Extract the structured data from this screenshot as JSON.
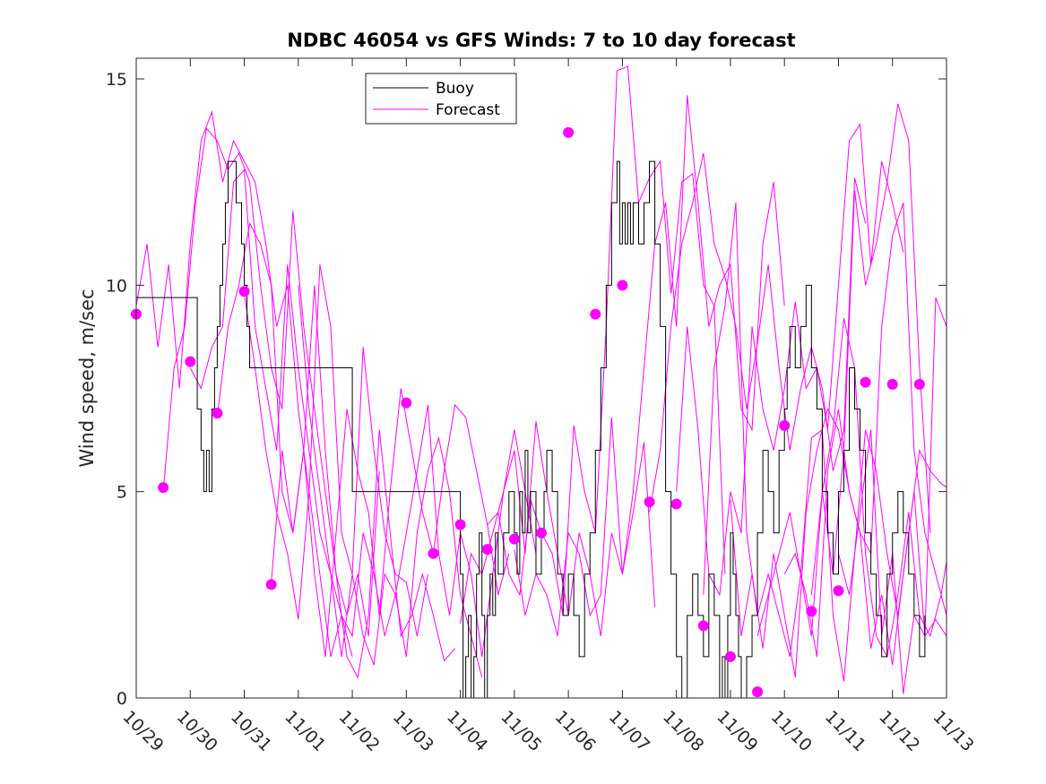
{
  "chart_data": {
    "type": "line",
    "title": "NDBC 46054 vs GFS Winds: 7 to 10 day forecast",
    "xlabel": "",
    "ylabel": "Wind speed, m/sec",
    "xlim": [
      0,
      15
    ],
    "ylim": [
      0,
      15.5
    ],
    "x_ticks": [
      "10/29",
      "10/30",
      "10/31",
      "11/01",
      "11/02",
      "11/03",
      "11/04",
      "11/05",
      "11/06",
      "11/07",
      "11/08",
      "11/09",
      "11/10",
      "11/11",
      "11/12",
      "11/13"
    ],
    "y_ticks": [
      0,
      5,
      10,
      15
    ],
    "legend": {
      "placement": "top-center",
      "entries": [
        "Buoy",
        "Forecast"
      ]
    },
    "colors": {
      "buoy": "#000000",
      "forecast": "#ff00ff"
    },
    "series": [
      {
        "name": "Buoy",
        "style": "step",
        "x": [
          0,
          1.13,
          1.2,
          1.25,
          1.3,
          1.35,
          1.4,
          1.45,
          1.5,
          1.55,
          1.6,
          1.65,
          1.7,
          1.8,
          1.85,
          1.9,
          1.95,
          2.0,
          2.05,
          2.1,
          4.0,
          6.0,
          6.05,
          6.1,
          6.15,
          6.2,
          6.25,
          6.3,
          6.35,
          6.4,
          6.45,
          6.5,
          6.55,
          6.6,
          6.65,
          6.7,
          6.8,
          6.9,
          7.0,
          7.05,
          7.1,
          7.15,
          7.2,
          7.25,
          7.3,
          7.4,
          7.5,
          7.55,
          7.6,
          7.7,
          7.8,
          7.9,
          8.0,
          8.1,
          8.2,
          8.3,
          8.4,
          8.5,
          8.6,
          8.7,
          8.8,
          8.9,
          8.95,
          9.0,
          9.05,
          9.1,
          9.15,
          9.2,
          9.3,
          9.4,
          9.5,
          9.6,
          9.7,
          9.8,
          9.9,
          10.0,
          10.1,
          10.2,
          10.3,
          10.4,
          10.5,
          10.6,
          10.7,
          10.8,
          10.85,
          10.9,
          10.95,
          11.0,
          11.05,
          11.1,
          11.15,
          11.2,
          11.3,
          11.4,
          11.5,
          11.6,
          11.7,
          11.8,
          11.9,
          12.0,
          12.05,
          12.1,
          12.2,
          12.3,
          12.4,
          12.5,
          12.6,
          12.7,
          12.8,
          12.9,
          13.0,
          13.1,
          13.2,
          13.3,
          13.4,
          13.5,
          13.6,
          13.7,
          13.8,
          13.9,
          14.0,
          14.1,
          14.2,
          14.3,
          14.4,
          14.5,
          14.6
        ],
        "values": [
          9.7,
          7,
          6,
          5,
          6,
          5,
          7,
          8,
          9,
          10,
          11,
          12,
          13,
          13,
          12,
          12,
          11,
          10,
          9,
          8,
          5,
          3,
          0,
          1,
          2,
          0,
          1,
          3,
          4,
          2,
          0,
          2,
          3,
          2,
          4,
          3,
          4,
          5,
          4,
          3,
          5,
          4,
          6,
          4,
          5,
          3,
          4,
          5,
          6,
          5,
          3,
          2,
          3,
          2,
          1,
          3,
          4,
          6,
          8,
          10,
          12,
          13,
          11,
          12,
          11,
          12,
          11,
          12,
          11,
          12,
          13,
          11,
          9,
          5,
          3,
          1,
          0,
          2,
          3,
          2,
          1,
          3,
          2,
          0,
          1,
          0,
          2,
          4,
          3,
          2,
          1,
          0,
          1,
          2,
          4,
          6,
          5,
          4,
          6,
          7,
          8,
          9,
          8,
          9,
          10,
          8,
          7,
          5,
          4,
          3,
          5,
          6,
          8,
          7,
          6,
          4,
          3,
          2,
          1,
          3,
          4,
          5,
          4,
          3,
          2,
          1,
          2
        ]
      },
      {
        "name": "Forecast",
        "x": [
          0,
          0.2,
          0.4,
          0.6,
          0.8,
          1.0,
          1.2,
          1.4,
          1.6,
          1.8,
          2.0,
          2.2,
          2.4,
          2.6,
          2.8,
          3.0,
          3.2,
          3.4,
          3.6,
          3.8,
          4.0
        ],
        "values": [
          9.5,
          11,
          8.5,
          10.5,
          7.5,
          11,
          13.5,
          14.2,
          12.5,
          13.5,
          13,
          12.5,
          11,
          9,
          10,
          7,
          5,
          3,
          1,
          2,
          1
        ]
      },
      {
        "name": "Forecast",
        "x": [
          0.5,
          0.7,
          0.9,
          1.1,
          1.3,
          1.5,
          1.7,
          1.9,
          2.1,
          2.3,
          2.5,
          2.7,
          2.9,
          3.1,
          3.3,
          3.5,
          3.7,
          3.9,
          4.1,
          4.3,
          4.5
        ],
        "values": [
          5,
          8,
          9,
          12,
          13.8,
          13.5,
          12.8,
          13.2,
          12.5,
          10,
          8,
          7,
          11.8,
          9,
          7,
          5,
          3,
          2,
          3,
          1.5,
          5.5
        ]
      },
      {
        "name": "Forecast",
        "x": [
          1.0,
          1.2,
          1.4,
          1.6,
          1.8,
          2.0,
          2.2,
          2.4,
          2.6,
          2.8,
          3.0,
          3.2,
          3.4,
          3.6,
          3.8,
          4.0,
          4.2,
          4.4,
          4.6,
          4.8,
          5.0,
          5.2,
          5.4
        ],
        "values": [
          8,
          7.5,
          8.5,
          9,
          12.5,
          12.8,
          9,
          7.5,
          6,
          10.5,
          8,
          6,
          4,
          3,
          1,
          3,
          8.5,
          6,
          4,
          3,
          2.8,
          1.5,
          3
        ]
      },
      {
        "name": "Forecast",
        "x": [
          1.5,
          1.7,
          1.9,
          2.1,
          2.3,
          2.5,
          2.7,
          2.9,
          3.1,
          3.3,
          3.5,
          3.7,
          3.9,
          4.1,
          4.3,
          4.5,
          4.7,
          4.9,
          5.1,
          5.3,
          5.5,
          5.7,
          5.9
        ],
        "values": [
          6.8,
          9,
          10,
          11.5,
          11,
          10,
          5,
          4,
          6,
          10,
          6,
          3,
          1,
          0.5,
          2,
          6.5,
          4,
          1.5,
          2,
          3,
          2,
          0.9,
          1.2
        ]
      },
      {
        "name": "Forecast",
        "x": [
          2.0,
          2.2,
          2.4,
          2.6,
          2.8,
          3.0,
          3.2,
          3.4,
          3.6,
          3.8,
          4.0,
          4.2,
          4.4,
          4.6,
          4.8,
          5.0,
          5.2,
          5.4,
          5.6,
          5.8,
          6.0,
          6.2,
          6.4
        ],
        "values": [
          9.8,
          8,
          6,
          4.5,
          3.5,
          1.9,
          5,
          10.5,
          9,
          4,
          3,
          1.5,
          0.8,
          3,
          2.5,
          1,
          4,
          5.5,
          6.3,
          5,
          2.5,
          1.5,
          0.5
        ]
      },
      {
        "name": "Forecast",
        "x": [
          2.5,
          2.7,
          2.9,
          3.1,
          3.3,
          3.5,
          3.7,
          3.9,
          4.1,
          4.3,
          4.5,
          4.7,
          4.9,
          5.1,
          5.3,
          5.5,
          5.7,
          5.9,
          6.1,
          6.3,
          6.5,
          6.7,
          6.9
        ],
        "values": [
          2.8,
          6,
          4,
          6,
          3,
          1,
          4,
          7,
          5.5,
          4.5,
          2,
          5,
          7.5,
          6,
          4.5,
          3.5,
          5.5,
          7.1,
          6.8,
          5.5,
          4.2,
          2.5,
          3.5
        ]
      },
      {
        "name": "Forecast",
        "x": [
          3.0,
          3.2,
          3.4,
          3.6,
          3.8,
          4.0,
          4.2,
          4.4,
          4.6,
          4.8,
          5.0,
          5.2,
          5.4,
          5.6,
          5.8,
          6.0,
          6.2,
          6.4,
          6.6,
          6.8,
          7.0,
          7.2,
          7.4
        ],
        "values": [
          10,
          7,
          5,
          3,
          2,
          1.5,
          4,
          3,
          1.5,
          2.5,
          4,
          5.5,
          7.1,
          3.5,
          2,
          4,
          3,
          1,
          3,
          5,
          6.5,
          5,
          3.5
        ]
      },
      {
        "name": "Forecast",
        "x": [
          6.0,
          6.2,
          6.4,
          6.6,
          6.8,
          7.0,
          7.2,
          7.4,
          7.6,
          7.8,
          8.0,
          8.2,
          8.4,
          8.6,
          8.8,
          9.0,
          9.2,
          9.4,
          9.6
        ],
        "values": [
          1.8,
          3.5,
          3,
          4,
          5,
          6,
          3.5,
          6.7,
          5,
          3.5,
          2,
          4,
          3,
          1.5,
          4,
          3,
          4.5,
          6.2,
          2.2
        ]
      },
      {
        "name": "Forecast",
        "x": [
          6.5,
          6.7,
          6.9,
          7.1,
          7.3,
          7.5,
          7.7,
          7.9,
          8.1,
          8.3,
          8.5,
          8.7,
          8.9,
          9.1,
          9.3,
          9.5,
          9.7,
          9.9,
          10.1,
          10.3,
          10.5,
          10.7,
          10.9
        ],
        "values": [
          4.2,
          4.5,
          3,
          2.5,
          4.8,
          4,
          3.5,
          2,
          6.6,
          5,
          4,
          9,
          15.2,
          15.3,
          12,
          12.6,
          13,
          9.8,
          12.5,
          12.7,
          10,
          9.5,
          3
        ]
      },
      {
        "name": "Forecast",
        "x": [
          7.0,
          7.2,
          7.4,
          7.6,
          7.8,
          8.0,
          8.2,
          8.4,
          8.6,
          8.8,
          9.0,
          9.2,
          9.4,
          9.6,
          9.8,
          10.0,
          10.2,
          10.4,
          10.6,
          10.8,
          11.0,
          11.2,
          11.4,
          11.6,
          11.8,
          12.0
        ],
        "values": [
          3.6,
          2,
          3,
          2.5,
          1.5,
          4,
          3.5,
          2,
          2.5,
          6.8,
          3,
          5,
          8,
          11,
          12,
          9,
          14.6,
          12,
          9,
          10,
          10.5,
          7,
          6.5,
          11,
          12.5,
          9.5
        ]
      },
      {
        "name": "Forecast",
        "x": [
          9.5,
          9.7,
          9.9,
          10.1,
          10.3,
          10.5,
          10.7,
          10.9,
          11.1,
          11.3,
          11.5,
          11.7,
          11.9,
          12.1,
          12.3,
          12.5,
          12.7,
          12.9,
          13.1,
          13.3,
          13.5
        ],
        "values": [
          4.5,
          6,
          9,
          11,
          12,
          13.2,
          11,
          10.2,
          9,
          7,
          8.6,
          10.5,
          8,
          6,
          7.5,
          8.5,
          7.5,
          5.5,
          6.5,
          12.6,
          11.5
        ]
      },
      {
        "name": "Forecast",
        "x": [
          10.0,
          10.2,
          10.4,
          10.6,
          10.8,
          11.0,
          11.2,
          11.4,
          11.6,
          11.8,
          12.0,
          12.2,
          12.4,
          12.6,
          12.8,
          13.0,
          13.2,
          13.4,
          13.6,
          13.8,
          14.0,
          14.2
        ],
        "values": [
          5,
          9,
          6.5,
          3,
          2.5,
          5,
          4,
          9,
          7,
          6,
          7.5,
          9.6,
          7.5,
          8,
          6.5,
          10,
          13.5,
          13.9,
          10.5,
          13,
          12,
          10.8
        ]
      },
      {
        "name": "Forecast",
        "x": [
          10.5,
          10.7,
          10.9,
          11.1,
          11.3,
          11.5,
          11.7,
          11.9,
          12.1,
          12.3,
          12.5,
          12.7,
          12.9,
          13.1,
          13.3,
          13.5,
          13.7,
          13.9,
          14.1,
          14.3,
          14.5,
          14.7
        ],
        "values": [
          2.5,
          8,
          9.5,
          12,
          4,
          2,
          3,
          2,
          1,
          3,
          1.5,
          5,
          3,
          6,
          12.3,
          10,
          11,
          12.5,
          14.4,
          13.5,
          8,
          4
        ]
      },
      {
        "name": "Forecast",
        "x": [
          11.0,
          11.2,
          11.4,
          11.6,
          11.8,
          12.0,
          12.2,
          12.4,
          12.6,
          12.8,
          13.0,
          13.2,
          13.4,
          13.6,
          13.8,
          14.0,
          14.2,
          14.4,
          14.6,
          14.8,
          15.0
        ],
        "values": [
          4.8,
          1.5,
          3,
          1.2,
          3.5,
          2,
          0.5,
          4.5,
          6,
          7,
          6.5,
          5,
          4,
          3.5,
          9,
          11.2,
          12,
          6,
          4,
          3,
          2
        ]
      },
      {
        "name": "Forecast",
        "x": [
          11.5,
          11.7,
          11.9,
          12.1,
          12.3,
          12.5,
          12.7,
          12.9,
          13.1,
          13.3,
          13.5,
          13.7,
          13.9,
          14.1,
          14.3,
          14.5,
          14.7,
          14.9,
          15.0
        ],
        "values": [
          1.5,
          2.5,
          3.5,
          4.5,
          3,
          6.3,
          6.5,
          2,
          0.4,
          3.5,
          6.5,
          5.5,
          3.5,
          2,
          4,
          6,
          5.5,
          5.2,
          5.1
        ]
      },
      {
        "name": "Forecast",
        "x": [
          12.0,
          12.2,
          12.4,
          12.6,
          12.8,
          13.0,
          13.2,
          13.4,
          13.6,
          13.8,
          14.0,
          14.2,
          14.4,
          14.6,
          14.8,
          15.0
        ],
        "values": [
          3,
          3.5,
          2.5,
          1,
          5.5,
          7,
          5,
          4,
          1.2,
          2.5,
          0.8,
          3,
          5,
          1.5,
          9.7,
          9
        ]
      },
      {
        "name": "Forecast",
        "x": [
          12.5,
          12.7,
          12.9,
          13.1,
          13.3,
          13.5,
          13.7,
          13.9,
          14.1,
          14.3,
          14.5,
          14.7,
          14.9,
          15.0
        ],
        "values": [
          2.5,
          5,
          6.5,
          9.2,
          8,
          3.5,
          1.5,
          1,
          2.5,
          4.5,
          2,
          1.5,
          2.5,
          3.3
        ]
      },
      {
        "name": "Forecast",
        "x": [
          13.0,
          13.2,
          13.4,
          13.6,
          13.8,
          14.0,
          14.2,
          14.4,
          14.6,
          14.8,
          15.0
        ],
        "values": [
          3.5,
          2.5,
          4.5,
          6.5,
          1.5,
          3.5,
          0.1,
          2,
          1.5,
          1.9,
          1.5
        ]
      }
    ],
    "markers": {
      "x": [
        0,
        0.5,
        1.0,
        1.5,
        2.0,
        2.5,
        5.0,
        5.5,
        6.0,
        6.5,
        7.0,
        7.5,
        8.0,
        8.5,
        9.0,
        9.5,
        10.0,
        10.5,
        11.0,
        11.5,
        12.0,
        12.5,
        13.0,
        13.5,
        14.0,
        14.5
      ],
      "values": [
        9.3,
        5.1,
        8.15,
        6.9,
        9.85,
        2.75,
        7.15,
        3.5,
        4.2,
        3.6,
        3.85,
        4.0,
        13.7,
        9.3,
        10.0,
        4.75,
        4.7,
        1.75,
        1.0,
        0.15,
        6.6,
        2.1,
        2.6,
        7.65,
        7.6,
        7.6
      ]
    }
  }
}
